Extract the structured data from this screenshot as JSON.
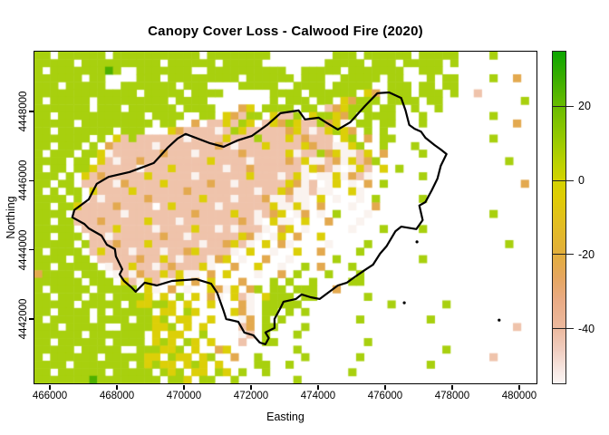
{
  "title": "Canopy Cover Loss - Calwood Fire (2020)",
  "axes": {
    "x_label": "Easting",
    "y_label": "Northing"
  },
  "chart_data": {
    "type": "heatmap",
    "title": "Canopy Cover Loss - Calwood Fire (2020)",
    "xlabel": "Easting",
    "ylabel": "Northing",
    "xlim": [
      465540,
      480515
    ],
    "ylim": [
      4440140,
      4449730
    ],
    "x_ticks": [
      466000,
      468000,
      470000,
      472000,
      474000,
      476000,
      478000,
      480000
    ],
    "y_ticks": [
      4442000,
      4444000,
      4446000,
      4448000
    ],
    "grid_on": false,
    "legend": {
      "position": "right",
      "value_range": [
        -55,
        35
      ],
      "ticks": [
        20,
        0,
        -20,
        -40
      ],
      "gradient_stops": [
        [
          "#0ca500",
          0
        ],
        [
          "#3aad00",
          0.08
        ],
        [
          "#6cbd00",
          0.17
        ],
        [
          "#95c900",
          0.26
        ],
        [
          "#b8d100",
          0.33
        ],
        [
          "#d2d300",
          0.385
        ],
        [
          "#dfcc04",
          0.44
        ],
        [
          "#e2bd22",
          0.52
        ],
        [
          "#e2ae3d",
          0.611
        ],
        [
          "#e5a65f",
          0.68
        ],
        [
          "#e9ab85",
          0.75
        ],
        [
          "#ecb99e",
          0.833
        ],
        [
          "#f0cdc0",
          0.9
        ],
        [
          "#f7e7e2",
          0.96
        ],
        [
          "#fbf5f4",
          1
        ]
      ]
    },
    "palette": {
      "g": {
        "color": "#a8d00e",
        "value": 8,
        "meaning": "slight canopy gain"
      },
      "G": {
        "color": "#4db000",
        "value": 22,
        "meaning": "strong canopy gain"
      },
      "y": {
        "color": "#dccf08",
        "value": -8,
        "meaning": "slight canopy loss"
      },
      "o": {
        "color": "#e3a94f",
        "value": -24,
        "meaning": "moderate canopy loss"
      },
      "p": {
        "color": "#efc3ab",
        "value": -38,
        "meaning": "high canopy loss"
      },
      "P": {
        "color": "#f5dccd",
        "value": -46,
        "meaning": "very high canopy loss"
      },
      "w": {
        "color": "#faf3ef",
        "value": -52,
        "meaning": "near-total canopy loss"
      },
      ".": {
        "color": "#ffffff",
        "value": null,
        "meaning": "no data"
      }
    },
    "grid": {
      "cols": 64,
      "rows": 44,
      "cell_rows": [
        "gg.ggggg g.gggggg ggggg.gg gggggg.. ......gg g.gggggg .ggggg.. ..g.....",
        "ggggg.gg gggggggg .gggggg. ggggg... .....ggg gg.ggg.g gggg.g.. ........",
        "g.gggggg gGg..ggg gggg..gg gggggggg ..ggggg. ggggggg. .ggg.... ........",
        "gggggg.g g....ggg .ggggggg gg.ggggg g.ggg..g gggg.gg. ..g.gg.. ..g..o..",
        "ggg.gggg g..ggggg gg.ggg.. ..ggggg. .gggg.gg ggg..ggg .gg.gg.. ........",
        "gggggggg ggggg.gg ggg.gggg ......gg gg.ggggg g.yo.ggg .ggg.g.. p.......",
        "g.ggggg. gggggggg g.gggg.. ......g. ggg.gg.y oggg.ggg g.gg.... ......g.",
        "ggggggg. ggg.gggg gg.gggg. ..oy.ggg g.gg.poy ggg.gg.. g..g.... ........",
        "gg.ggggg gggggg.g ggg..gg. yopgg.yp pg.yggyo g.gggg.. .g...... ..g.....",
        "ggggg.gg ggggggg. gg..o.pp ypgy.pyo gyppgoyw .gg.gg.. .g...... .....o..",
        "gg.ggggg gg.ggg.. .yoppppw pgyppppp oypwpygy o.g.g... ........ ........",
        "ggggggg. g.ypgppp pppwpppp ypppgppp ypoppp.y g.o.gg.. ........ ..g.....",
        "gg.ggg.g .opppppw pppppppo pwpppypp ppyoppww yg..g... g....... ........",
        "g.ggg.gg ywpppppp opppwppp ppoppppp ywppgoyw wpy.o... .g...... ........",
        "gggg.gg. ypwppopp ppppppyp pppwpppp opywwpow ypog.... ........ ....g...",
        "g.gg.ggy pppppwpp pypppppp wppopppp ppwyopw. wyp.y.g. ........ ........",
        "ggg.g.yp opppppyp ppppwppp pppypppw pyw.wwyw opw..... .g...... ........",
        "gg.gg.pp ppwopppp ypppppop pwpppppp yowp.wy. w.o.g... ........ ......o.",
        "g.g.gg.y ppppyppp pppopppp ppppwppy owwpww.. yw...... ........ ........",
        "gggg.g.p wpppppop pppppypp pwpppoww pww.y.w. .w.g.... .g...... ........",
        "gg.ggypp ppopppp. pypppppw ppppppyw wyw.o... w..o.... ........ ........",
        "gggg.ppp pppwpppp ppppoppp pyppwpoy .wo.w.g. ..w..... ........ ..g.....",
        "gg.ggppp opppppyp ppwppppp ppopw.yw w.y..o.. .w...... ........ ........",
        "ggggg.pp ppyppppw ppppyppw pwpppw.o y.w..... w...g... .g...... ........",
        "gg.ggg.p pwpppppp oppwpppp ppyow.wy .o..y... ........ ........ ........",
        "ggggg.gp ppopppyp pppppwpp oypw.y.o w....w.. ..g..... ........ ....g...",
        "g.gggg.p ypppwppp wppoyppp pw.y..w. .y..o... .g...... ........ ........",
        "gggg.gg. pppppopp ypwpppwo y.w..o.. w.....g. ........ .g...... ........",
        "gg.ggggg .wppyppw popppyw. .o..y..w ..g.o... g....... ........ ........",
        "ogggg.gg g.wpwopp ypyww.o. y...w..o .g...g.. .g...... ........ ........",
        "gggggg.g gg.ypwyp w.y.o.y. ..o...g. g..g.... gg...... ........ ........",
        "g.ggggg. ggggg.yw .o.w..yo wy.og.gg .ggg..o. ........ ........ ........",
        "gg.ggg.g g.ggggy. y.g.y.ow .ypw.ygg g.gg.... ..g..... ........ ........",
        "ggggg.gg ggg.gyyg gy.y..y. ..ow.ggg gg...... .....g.. ....g... ........",
        "gg.gggg. g.ggggg. yy.gy... .yow.gg. g.g..... ........ ........ ........",
        "g.ggggg. gggg.ggy g.yy..y. ..wo.g.g ........ .g...... ..g..... ........",
        "ggg.gggg g..ggggy yg.y.y.. ..po.gg. ..g..... ........ ........ .....p..",
        "gggggg.g gggggg.y .yy..g.. ..wp.g.. .g...... ........ ........ ........",
        "gg.ggggg g.gggg.y gy.gy.y. ..p..gg. ........ ..g..... ........ ........",
        "ggggg.gg ggg..ggg yyg.y..o y....... .g...... ........ ....g... ........",
        "g.gggggg .gggggyy .gyy.yg. .o..g... ..g..... .g...... ........ ..p.....",
        "gggg.ggg gggg.gyg yy.ygy.y ....gg.. g....... ........ ..g..... ........",
        "gg.ggggg g.ggggg. gyg.yy.g y.g..g.. ........ g....... ........ ........",
        "gggggggG gggggggg .ggy.gg. .g...... .g...... ........ ........ ........"
      ]
    },
    "fire_perimeter": {
      "color": "#000000",
      "points": [
        [
          470050,
          4447350
        ],
        [
          470780,
          4447080
        ],
        [
          471180,
          4446980
        ],
        [
          471590,
          4447160
        ],
        [
          472020,
          4447290
        ],
        [
          472480,
          4447610
        ],
        [
          472880,
          4447950
        ],
        [
          473420,
          4448030
        ],
        [
          473610,
          4447770
        ],
        [
          474020,
          4447820
        ],
        [
          474230,
          4447690
        ],
        [
          474590,
          4447480
        ],
        [
          474960,
          4447690
        ],
        [
          475400,
          4448160
        ],
        [
          475770,
          4448530
        ],
        [
          476120,
          4448550
        ],
        [
          476480,
          4448390
        ],
        [
          476610,
          4448030
        ],
        [
          476720,
          4447610
        ],
        [
          476880,
          4447500
        ],
        [
          477070,
          4447420
        ],
        [
          477200,
          4447240
        ],
        [
          477470,
          4447030
        ],
        [
          477660,
          4446900
        ],
        [
          477830,
          4446770
        ],
        [
          477660,
          4446430
        ],
        [
          477560,
          4446060
        ],
        [
          477390,
          4445720
        ],
        [
          477200,
          4445380
        ],
        [
          477020,
          4445280
        ],
        [
          477120,
          4444860
        ],
        [
          476930,
          4444600
        ],
        [
          476480,
          4444670
        ],
        [
          476310,
          4444540
        ],
        [
          476040,
          4444100
        ],
        [
          475850,
          4443890
        ],
        [
          475640,
          4443570
        ],
        [
          475400,
          4443420
        ],
        [
          475040,
          4443180
        ],
        [
          474860,
          4443050
        ],
        [
          474590,
          4442970
        ],
        [
          474230,
          4442710
        ],
        [
          474050,
          4442580
        ],
        [
          473780,
          4442630
        ],
        [
          473510,
          4442710
        ],
        [
          473340,
          4442580
        ],
        [
          472970,
          4442500
        ],
        [
          472880,
          4442320
        ],
        [
          472700,
          4442000
        ],
        [
          472700,
          4441740
        ],
        [
          472430,
          4441610
        ],
        [
          472530,
          4441450
        ],
        [
          472430,
          4441270
        ],
        [
          472260,
          4441320
        ],
        [
          472070,
          4441530
        ],
        [
          471800,
          4441610
        ],
        [
          471620,
          4441920
        ],
        [
          471260,
          4442000
        ],
        [
          471180,
          4442240
        ],
        [
          470990,
          4442760
        ],
        [
          470810,
          4443020
        ],
        [
          470370,
          4443150
        ],
        [
          469640,
          4443100
        ],
        [
          469190,
          4442970
        ],
        [
          468830,
          4443050
        ],
        [
          468560,
          4442790
        ],
        [
          468430,
          4442920
        ],
        [
          468210,
          4443100
        ],
        [
          468080,
          4443290
        ],
        [
          468160,
          4443440
        ],
        [
          467970,
          4443810
        ],
        [
          467940,
          4444020
        ],
        [
          467700,
          4444150
        ],
        [
          467540,
          4444410
        ],
        [
          467160,
          4444620
        ],
        [
          467030,
          4444750
        ],
        [
          466670,
          4444940
        ],
        [
          466730,
          4445150
        ],
        [
          467160,
          4445460
        ],
        [
          467400,
          4445910
        ],
        [
          467750,
          4446110
        ],
        [
          468380,
          4446250
        ],
        [
          469100,
          4446510
        ],
        [
          469510,
          4446950
        ],
        [
          469810,
          4447220
        ]
      ]
    },
    "specks": [
      [
        476570,
        4442470
      ],
      [
        476950,
        4444230
      ],
      [
        479400,
        4441970
      ]
    ]
  }
}
